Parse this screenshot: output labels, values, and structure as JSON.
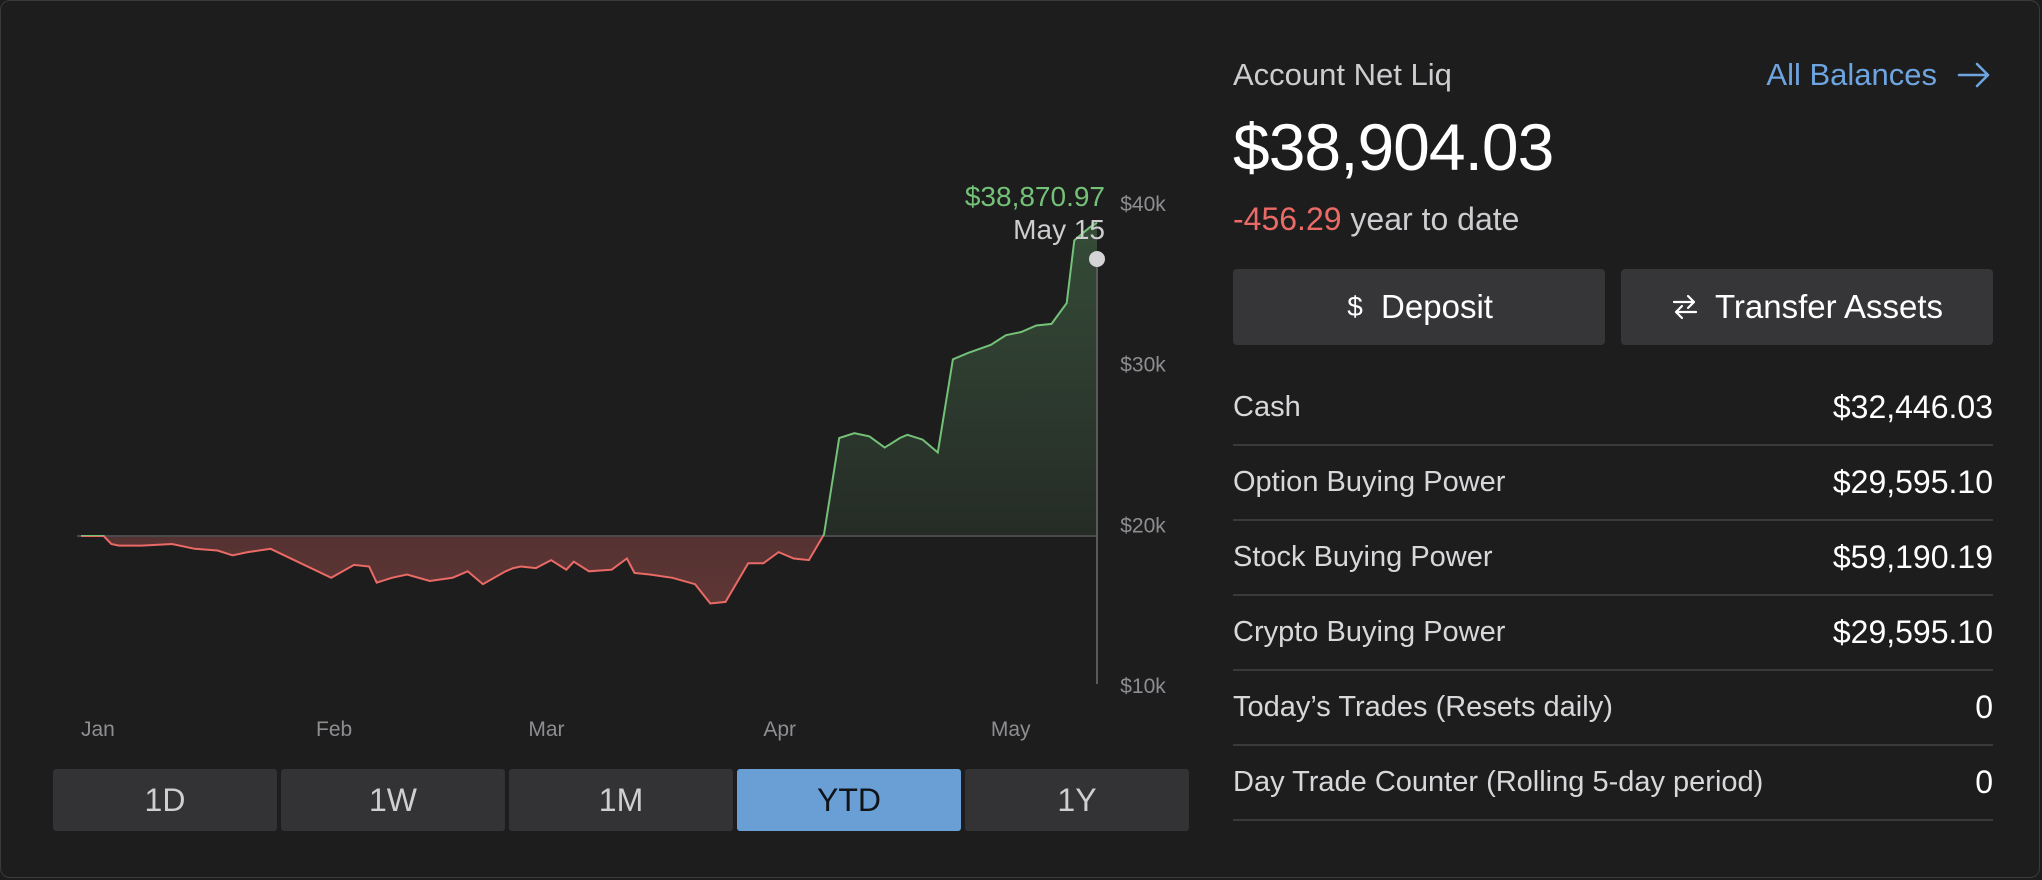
{
  "account": {
    "net_label": "Account Net Liq",
    "all_balances_label": "All Balances",
    "net_value": "$38,904.03",
    "ytd_change": "-456.29",
    "ytd_suffix": "year to date"
  },
  "actions": {
    "deposit_label": "Deposit",
    "transfer_label": "Transfer Assets"
  },
  "balances": [
    {
      "label": "Cash",
      "value": "$32,446.03"
    },
    {
      "label": "Option Buying Power",
      "value": "$29,595.10"
    },
    {
      "label": "Stock Buying Power",
      "value": "$59,190.19"
    },
    {
      "label": "Crypto Buying Power",
      "value": "$29,595.10"
    },
    {
      "label": "Today’s Trades (Resets daily)",
      "value": "0"
    },
    {
      "label": "Day Trade Counter (Rolling 5-day period)",
      "value": "0"
    }
  ],
  "ranges": [
    {
      "label": "1D",
      "active": false
    },
    {
      "label": "1W",
      "active": false
    },
    {
      "label": "1M",
      "active": false
    },
    {
      "label": "YTD",
      "active": true
    },
    {
      "label": "1Y",
      "active": false
    }
  ],
  "colors": {
    "positive": "#74c178",
    "negative": "#ea6a66",
    "accent": "#6a9fd6",
    "link": "#6ea5e0"
  },
  "icons": {
    "all_balances": "arrow-right-icon",
    "deposit": "dollar-icon",
    "transfer": "transfer-arrows-icon"
  },
  "chart_data": {
    "type": "area",
    "baseline": 19.4,
    "ylim": [
      10,
      41
    ],
    "y_ticks": [
      10,
      20,
      30,
      40
    ],
    "y_tick_labels": [
      "$10k",
      "$20k",
      "$30k",
      "$40k"
    ],
    "x_ticks": [
      0,
      31,
      59,
      90,
      120
    ],
    "x_tick_labels": [
      "Jan",
      "Feb",
      "Mar",
      "Apr",
      "May"
    ],
    "x_range": [
      0,
      134
    ],
    "tooltip": {
      "value": "$38,870.97",
      "date": "May 15",
      "x": 134
    },
    "series": [
      {
        "x": [
          0,
          3,
          4,
          5,
          8,
          12,
          15,
          18,
          20,
          22,
          25,
          29,
          33,
          36,
          38,
          39,
          41,
          43,
          46,
          49,
          51,
          53,
          56,
          57,
          58,
          60,
          62,
          64,
          65,
          67,
          70,
          72,
          73,
          75,
          78,
          81,
          83,
          85,
          88,
          90,
          92,
          94,
          96,
          98,
          100,
          102,
          104,
          106,
          108,
          109,
          111,
          113,
          115,
          117,
          120,
          121,
          122,
          124,
          126,
          128,
          130,
          131,
          132,
          133,
          134
        ],
        "y": [
          19.4,
          19.4,
          18.9,
          18.8,
          18.8,
          18.9,
          18.6,
          18.5,
          18.2,
          18.4,
          18.6,
          17.7,
          16.8,
          17.6,
          17.5,
          16.5,
          16.8,
          17.0,
          16.6,
          16.8,
          17.2,
          16.4,
          17.2,
          17.4,
          17.5,
          17.4,
          17.9,
          17.3,
          17.8,
          17.2,
          17.3,
          18.0,
          17.1,
          17.0,
          16.8,
          16.4,
          15.2,
          15.3,
          17.7,
          17.7,
          18.4,
          18.0,
          17.9,
          19.5,
          25.5,
          25.8,
          25.6,
          24.9,
          25.5,
          25.7,
          25.4,
          24.6,
          30.4,
          30.8,
          31.3,
          31.6,
          31.9,
          32.1,
          32.5,
          32.6,
          33.9,
          37.8,
          38.2,
          38.6,
          38.9
        ]
      }
    ]
  }
}
